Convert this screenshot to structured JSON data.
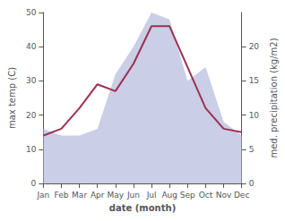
{
  "chart_data": {
    "type": "line",
    "categories": [
      "Jan",
      "Feb",
      "Mar",
      "Apr",
      "May",
      "Jun",
      "Jul",
      "Aug",
      "Sep",
      "Oct",
      "Nov",
      "Dec"
    ],
    "xlabel": "date (month)",
    "ylabel": "max temp (C)",
    "y2label": "med. precipitation (kg/m2)",
    "series": [
      {
        "type": "area",
        "color": "#b8bede",
        "axis": "y2",
        "values": [
          8,
          7,
          7,
          8,
          16,
          20,
          25,
          24,
          15,
          17,
          9,
          7
        ]
      },
      {
        "type": "line",
        "color": "#9e3050",
        "values": [
          14,
          16,
          22,
          29,
          27,
          35,
          46,
          46,
          34,
          22,
          16,
          15
        ]
      }
    ],
    "ylim": [
      0,
      50
    ],
    "yticks": [
      0,
      10,
      20,
      30,
      40,
      50
    ],
    "y2lim": [
      0,
      25
    ],
    "y2ticks": [
      0,
      5,
      10,
      15,
      20
    ],
    "grid": false
  }
}
